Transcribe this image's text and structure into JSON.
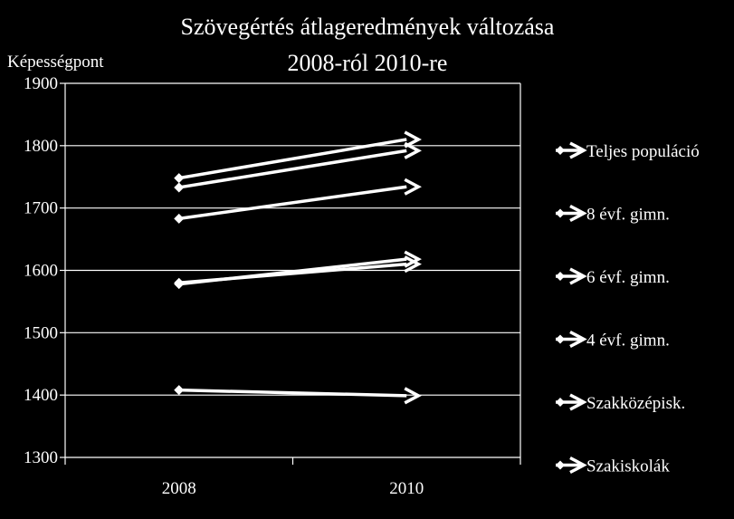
{
  "chart_data": {
    "type": "line",
    "title": [
      "Szövegértés átlageredmények változása",
      "2008-ról 2010-re"
    ],
    "ylabel": "Képességpont",
    "xlabel": "",
    "categories": [
      "2008",
      "2010"
    ],
    "ylim": [
      1300,
      1900
    ],
    "yticks": [
      1300,
      1400,
      1500,
      1600,
      1700,
      1800,
      1900
    ],
    "grid": "horizontal",
    "legend": "right",
    "line_color": "#ffffff",
    "series": [
      {
        "name": "Teljes populáció",
        "values": [
          1580,
          1610
        ]
      },
      {
        "name": "8 évf. gimn.",
        "values": [
          1748,
          1810
        ]
      },
      {
        "name": "6 évf. gimn.",
        "values": [
          1733,
          1792
        ]
      },
      {
        "name": "4 évf. gimn.",
        "values": [
          1683,
          1734
        ]
      },
      {
        "name": "Szakközépisk.",
        "values": [
          1578,
          1618
        ]
      },
      {
        "name": "Szakiskolák",
        "values": [
          1408,
          1399
        ]
      }
    ]
  }
}
